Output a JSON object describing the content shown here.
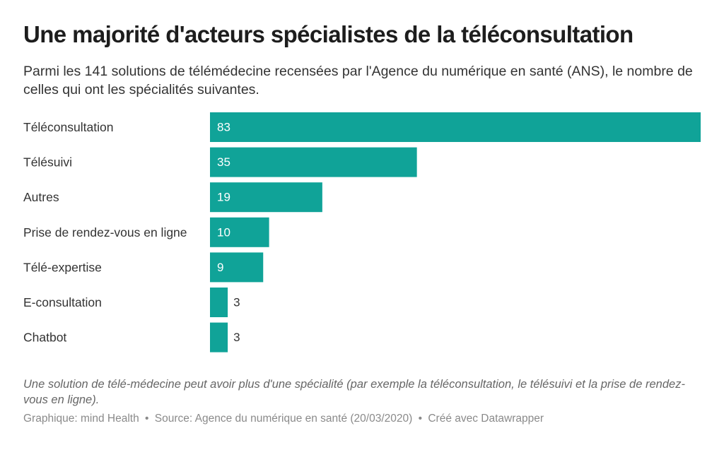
{
  "title": "Une majorité d'acteurs spécialistes de la téléconsultation",
  "subtitle": "Parmi les 141 solutions de télémédecine recensées par l'Agence du numérique en santé (ANS), le nombre de celles qui ont les spécialités suivantes.",
  "note": "Une solution de télé-médecine peut avoir plus d'une spécialité (par exemple la téléconsultation, le télésuivi et la prise de rendez-vous en ligne).",
  "footer": {
    "credit": "Graphique: mind Health",
    "separator": "•",
    "source": "Source: Agence du numérique en santé (20/03/2020)",
    "tool": "Créé avec Datawrapper"
  },
  "colors": {
    "bar": "#10a398",
    "text": "#333333",
    "muted": "#8a8a8a"
  },
  "chart_data": {
    "type": "bar",
    "orientation": "horizontal",
    "categories": [
      "Téléconsultation",
      "Télésuivi",
      "Autres",
      "Prise de rendez-vous en ligne",
      "Télé-expertise",
      "E-consultation",
      "Chatbot"
    ],
    "values": [
      83,
      35,
      19,
      10,
      9,
      3,
      3
    ],
    "xlim": [
      0,
      83
    ],
    "grid": false,
    "legend": "none",
    "value_labels": true
  }
}
